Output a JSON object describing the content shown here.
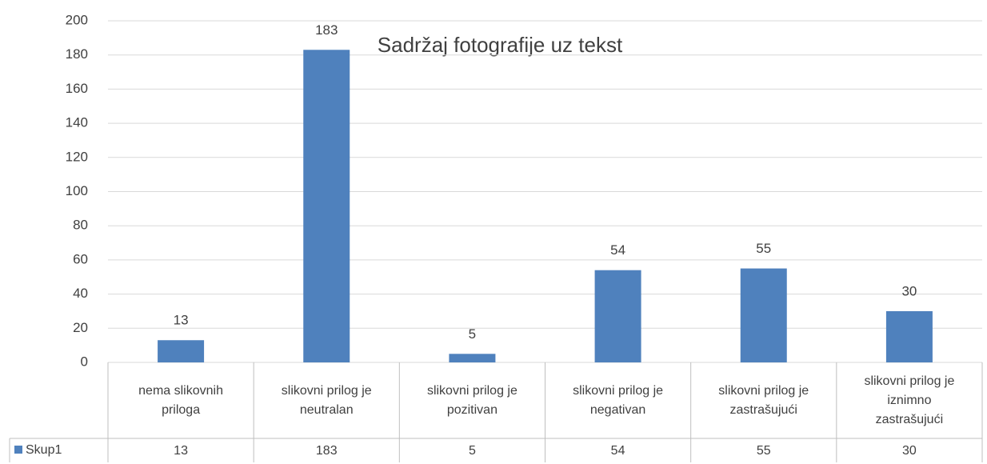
{
  "chart_data": {
    "type": "bar",
    "title": "Sadržaj fotografije uz tekst",
    "categories": [
      "nema slikovnih priloga",
      "slikovni prilog je neutralan",
      "slikovni prilog je pozitivan",
      "slikovni prilog je negativan",
      "slikovni prilog je zastrašujući",
      "slikovni prilog je iznimno zastrašujući"
    ],
    "series": [
      {
        "name": "Skup1",
        "color": "#4f81bd",
        "values": [
          13,
          183,
          5,
          54,
          55,
          30
        ]
      }
    ],
    "ylim": [
      0,
      200
    ],
    "yticks": [
      0,
      20,
      40,
      60,
      80,
      100,
      120,
      140,
      160,
      180,
      200
    ],
    "grid": true,
    "data_table": true
  }
}
